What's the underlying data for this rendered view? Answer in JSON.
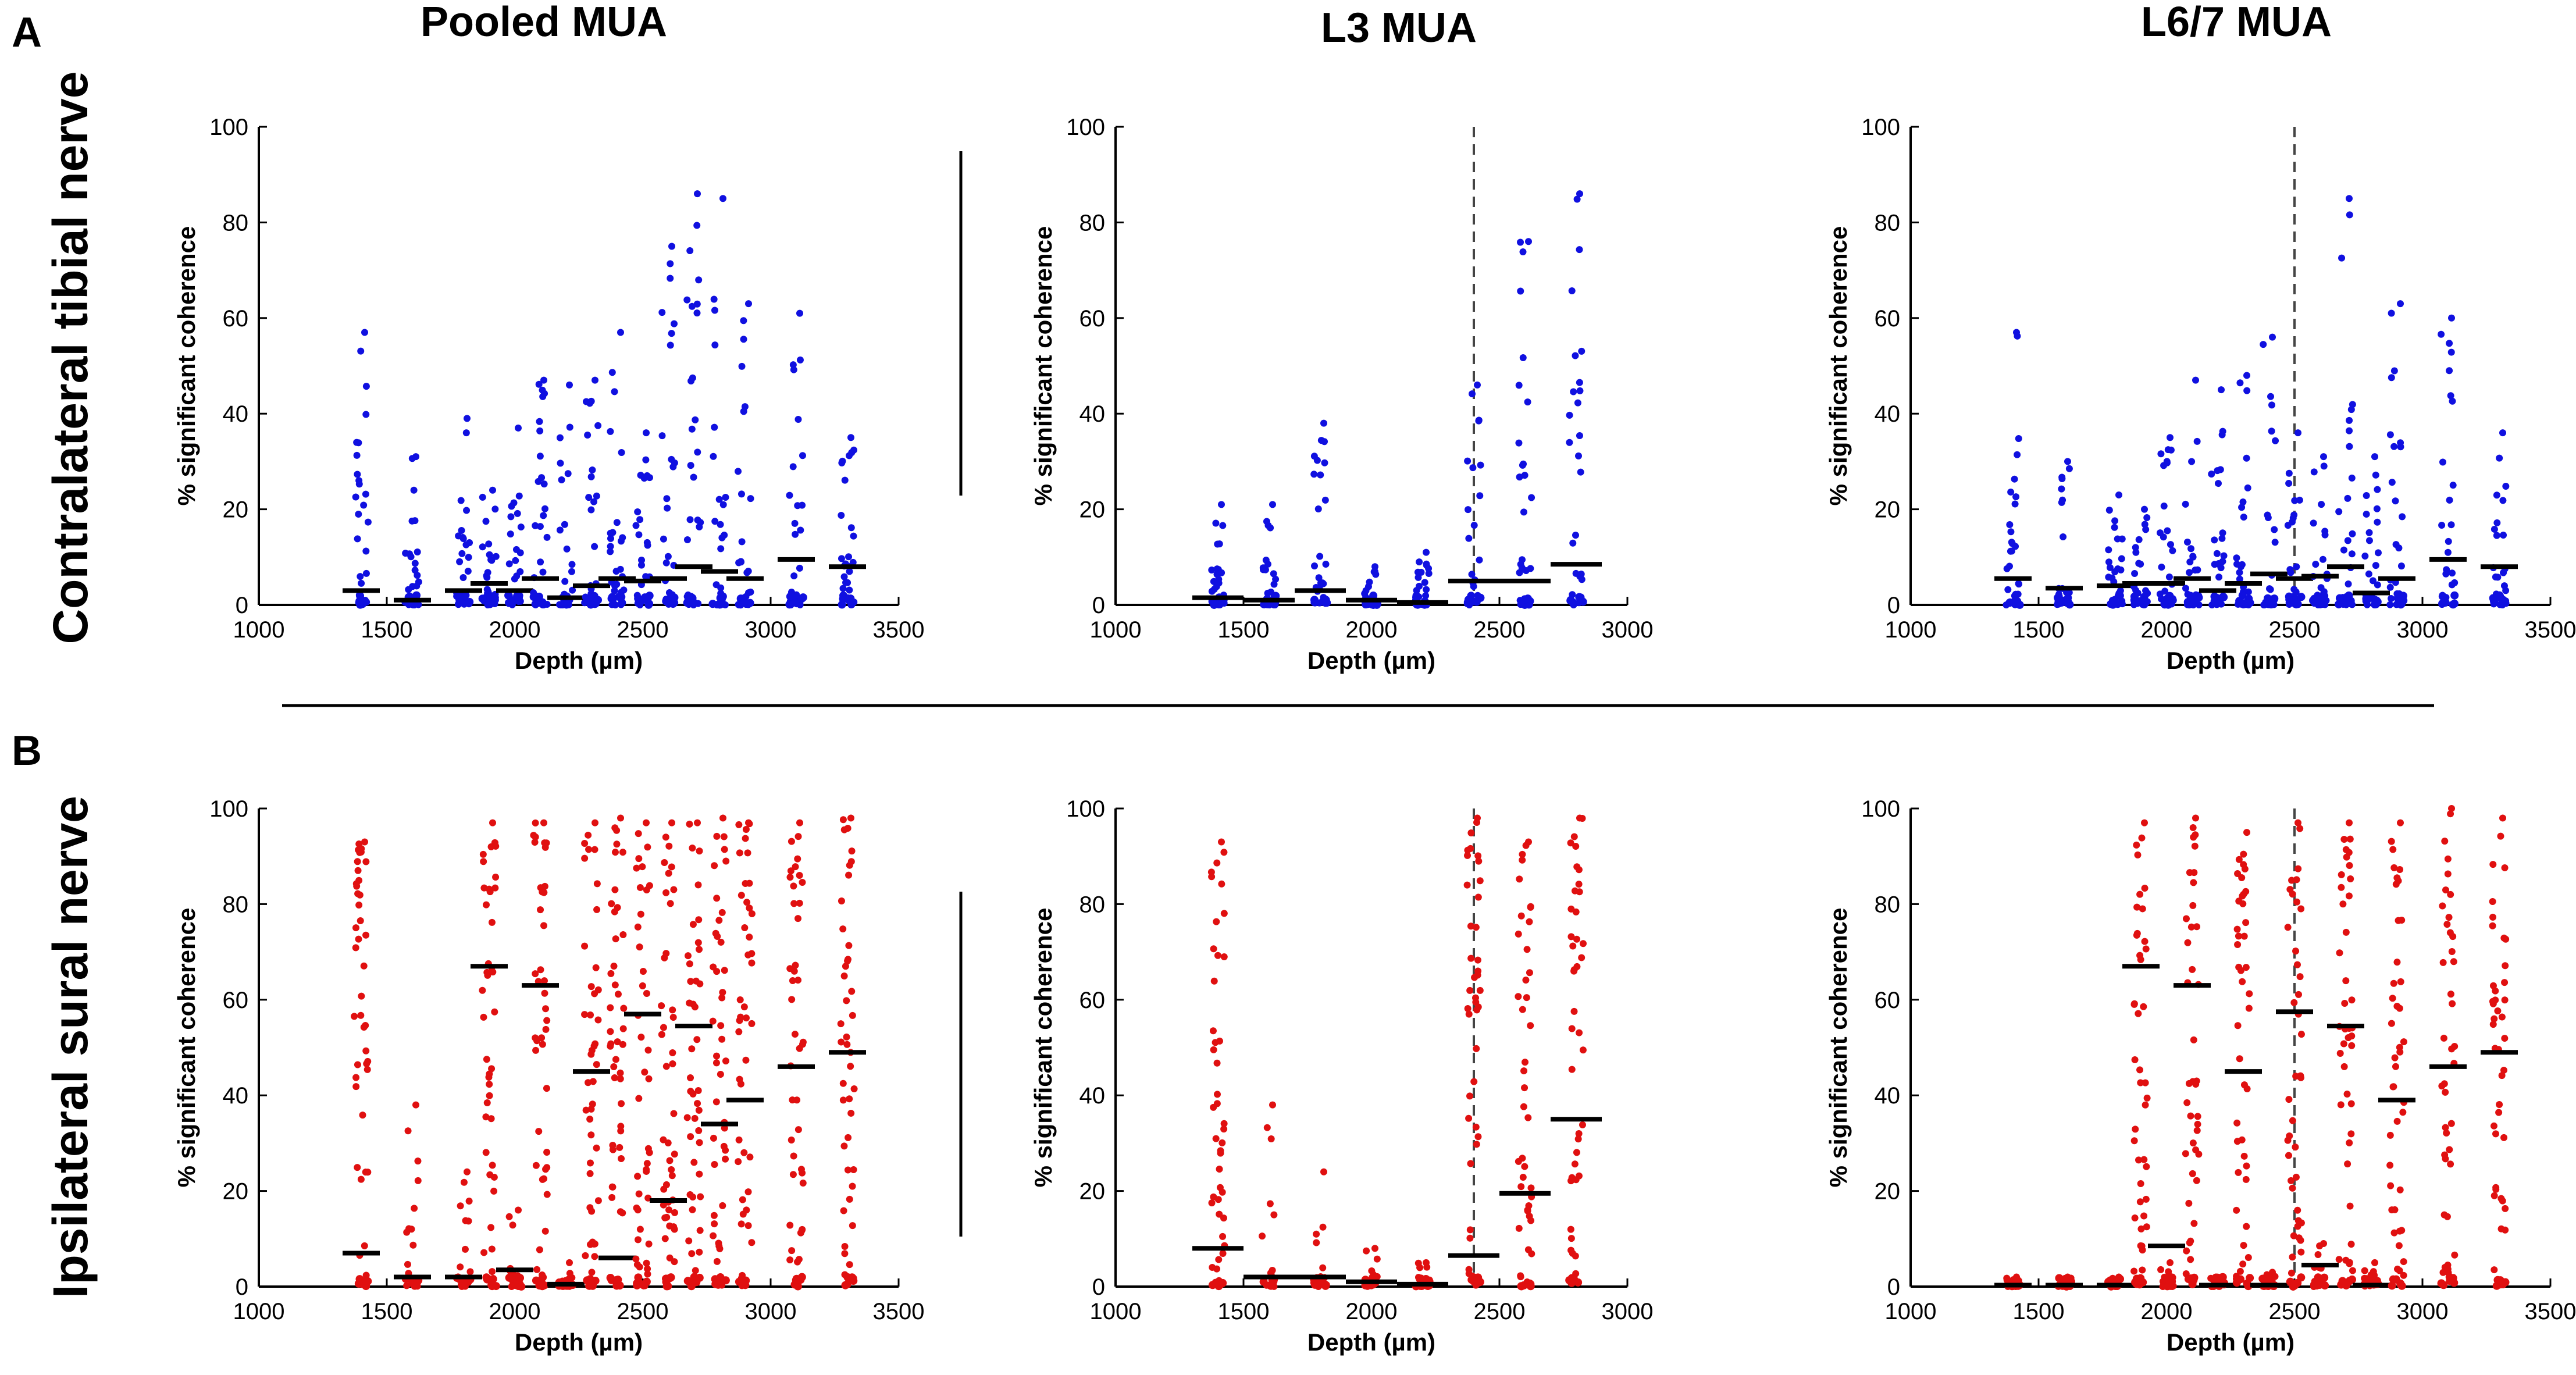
{
  "panel_labels": [
    "A",
    "B"
  ],
  "row_titles": [
    "Contralateral tibial nerve",
    "Ipsilateral sural nerve"
  ],
  "column_titles": [
    "Pooled MUA",
    "L3 MUA",
    "L6/7 MUA"
  ],
  "colors": {
    "contralateral": "#1010e0",
    "ipsilateral": "#e01010",
    "median": "#000000",
    "divider": "#444444"
  },
  "chart_data": [
    {
      "type": "scatter",
      "row": 0,
      "col": 0,
      "color": "blue",
      "title": "Pooled MUA",
      "xlabel": "Depth (µm)",
      "ylabel": "% significant coherence",
      "xlim": [
        1000,
        3500
      ],
      "ylim": [
        0,
        100
      ],
      "xticks": [
        1000,
        1500,
        2000,
        2500,
        3000,
        3500
      ],
      "yticks": [
        0,
        20,
        40,
        60,
        80,
        100
      ],
      "depths": [
        1400,
        1600,
        1800,
        1900,
        2000,
        2100,
        2200,
        2300,
        2400,
        2500,
        2600,
        2700,
        2800,
        2900,
        3100,
        3300
      ],
      "maxes": [
        57,
        31,
        39,
        24,
        37,
        47,
        46,
        47,
        57,
        36,
        75,
        86,
        85,
        63,
        61,
        35
      ],
      "medians": [
        3,
        1,
        3,
        4.5,
        3,
        5.5,
        1.5,
        4,
        5.5,
        5,
        5.5,
        8,
        7,
        5.5,
        9.5,
        8
      ],
      "dashed_line": null
    },
    {
      "type": "scatter",
      "row": 0,
      "col": 1,
      "color": "blue",
      "title": "L3 MUA",
      "xlabel": "Depth (µm)",
      "ylabel": "% significant coherence",
      "xlim": [
        1000,
        3000
      ],
      "ylim": [
        0,
        100
      ],
      "xticks": [
        1000,
        1500,
        2000,
        2500,
        3000
      ],
      "yticks": [
        0,
        20,
        40,
        60,
        80,
        100
      ],
      "depths": [
        1400,
        1600,
        1800,
        2000,
        2200,
        2400,
        2600,
        2800
      ],
      "maxes": [
        21,
        21,
        38,
        8,
        11,
        46,
        76,
        86
      ],
      "medians": [
        1.5,
        1,
        3,
        1,
        0.5,
        5,
        5,
        8.5
      ],
      "dashed_line": 2400
    },
    {
      "type": "scatter",
      "row": 0,
      "col": 2,
      "color": "blue",
      "title": "L6/7 MUA",
      "xlabel": "Depth (µm)",
      "ylabel": "% significant coherence",
      "xlim": [
        1000,
        3500
      ],
      "ylim": [
        0,
        100
      ],
      "xticks": [
        1000,
        1500,
        2000,
        2500,
        3000,
        3500
      ],
      "yticks": [
        0,
        20,
        40,
        60,
        80,
        100
      ],
      "depths": [
        1400,
        1600,
        1800,
        1900,
        2000,
        2100,
        2200,
        2300,
        2400,
        2500,
        2600,
        2700,
        2800,
        2900,
        3100,
        3300
      ],
      "maxes": [
        57,
        30,
        23,
        20,
        35,
        47,
        45,
        48,
        56,
        36,
        31,
        85,
        31,
        63,
        60,
        36
      ],
      "medians": [
        5.5,
        3.5,
        4,
        4.5,
        4.5,
        5.5,
        3,
        4.5,
        6.5,
        5.5,
        6,
        8,
        2.5,
        5.5,
        9.5,
        8
      ],
      "dashed_line": 2500
    },
    {
      "type": "scatter",
      "row": 1,
      "col": 0,
      "color": "red",
      "title": "",
      "xlabel": "Depth (µm)",
      "ylabel": "% significant coherence",
      "xlim": [
        1000,
        3500
      ],
      "ylim": [
        0,
        100
      ],
      "xticks": [
        1000,
        1500,
        2000,
        2500,
        3000,
        3500
      ],
      "yticks": [
        0,
        20,
        40,
        60,
        80,
        100
      ],
      "depths": [
        1400,
        1600,
        1800,
        1900,
        2000,
        2100,
        2200,
        2300,
        2400,
        2500,
        2600,
        2700,
        2800,
        2900,
        3100,
        3300
      ],
      "maxes": [
        93,
        38,
        24,
        97,
        16,
        97,
        5,
        97,
        98,
        97,
        97,
        97,
        98,
        97,
        97,
        98
      ],
      "medians": [
        7,
        2,
        2,
        67,
        3.5,
        63,
        0.5,
        45,
        6,
        57,
        18,
        54.5,
        34,
        39,
        46,
        49
      ],
      "dashed_line": null
    },
    {
      "type": "scatter",
      "row": 1,
      "col": 1,
      "color": "red",
      "title": "",
      "xlabel": "Depth (µm)",
      "ylabel": "% significant coherence",
      "xlim": [
        1000,
        3000
      ],
      "ylim": [
        0,
        100
      ],
      "xticks": [
        1000,
        1500,
        2000,
        2500,
        3000
      ],
      "yticks": [
        0,
        20,
        40,
        60,
        80,
        100
      ],
      "depths": [
        1400,
        1600,
        1800,
        2000,
        2200,
        2400,
        2600,
        2800
      ],
      "maxes": [
        93,
        38,
        24,
        8,
        5,
        98,
        93,
        98
      ],
      "medians": [
        8,
        2,
        2,
        1,
        0.5,
        6.5,
        19.5,
        35
      ],
      "dashed_line": 2400
    },
    {
      "type": "scatter",
      "row": 1,
      "col": 2,
      "color": "red",
      "title": "",
      "xlabel": "Depth (µm)",
      "ylabel": "% significant coherence",
      "xlim": [
        1000,
        3500
      ],
      "ylim": [
        0,
        100
      ],
      "xticks": [
        1000,
        1500,
        2000,
        2500,
        3000,
        3500
      ],
      "yticks": [
        0,
        20,
        40,
        60,
        80,
        100
      ],
      "depths": [
        1400,
        1600,
        1800,
        1900,
        2000,
        2100,
        2200,
        2300,
        2400,
        2500,
        2600,
        2700,
        2800,
        2900,
        3100,
        3300
      ],
      "maxes": [
        2,
        2,
        2,
        97,
        5,
        98,
        2,
        95,
        3,
        97,
        9,
        97,
        5,
        97,
        100,
        98
      ],
      "medians": [
        0.3,
        0.3,
        0.3,
        67,
        8.5,
        63,
        0.3,
        45,
        0.3,
        57.5,
        4.5,
        54.5,
        0.3,
        39,
        46,
        49
      ],
      "dashed_line": 2500
    }
  ]
}
